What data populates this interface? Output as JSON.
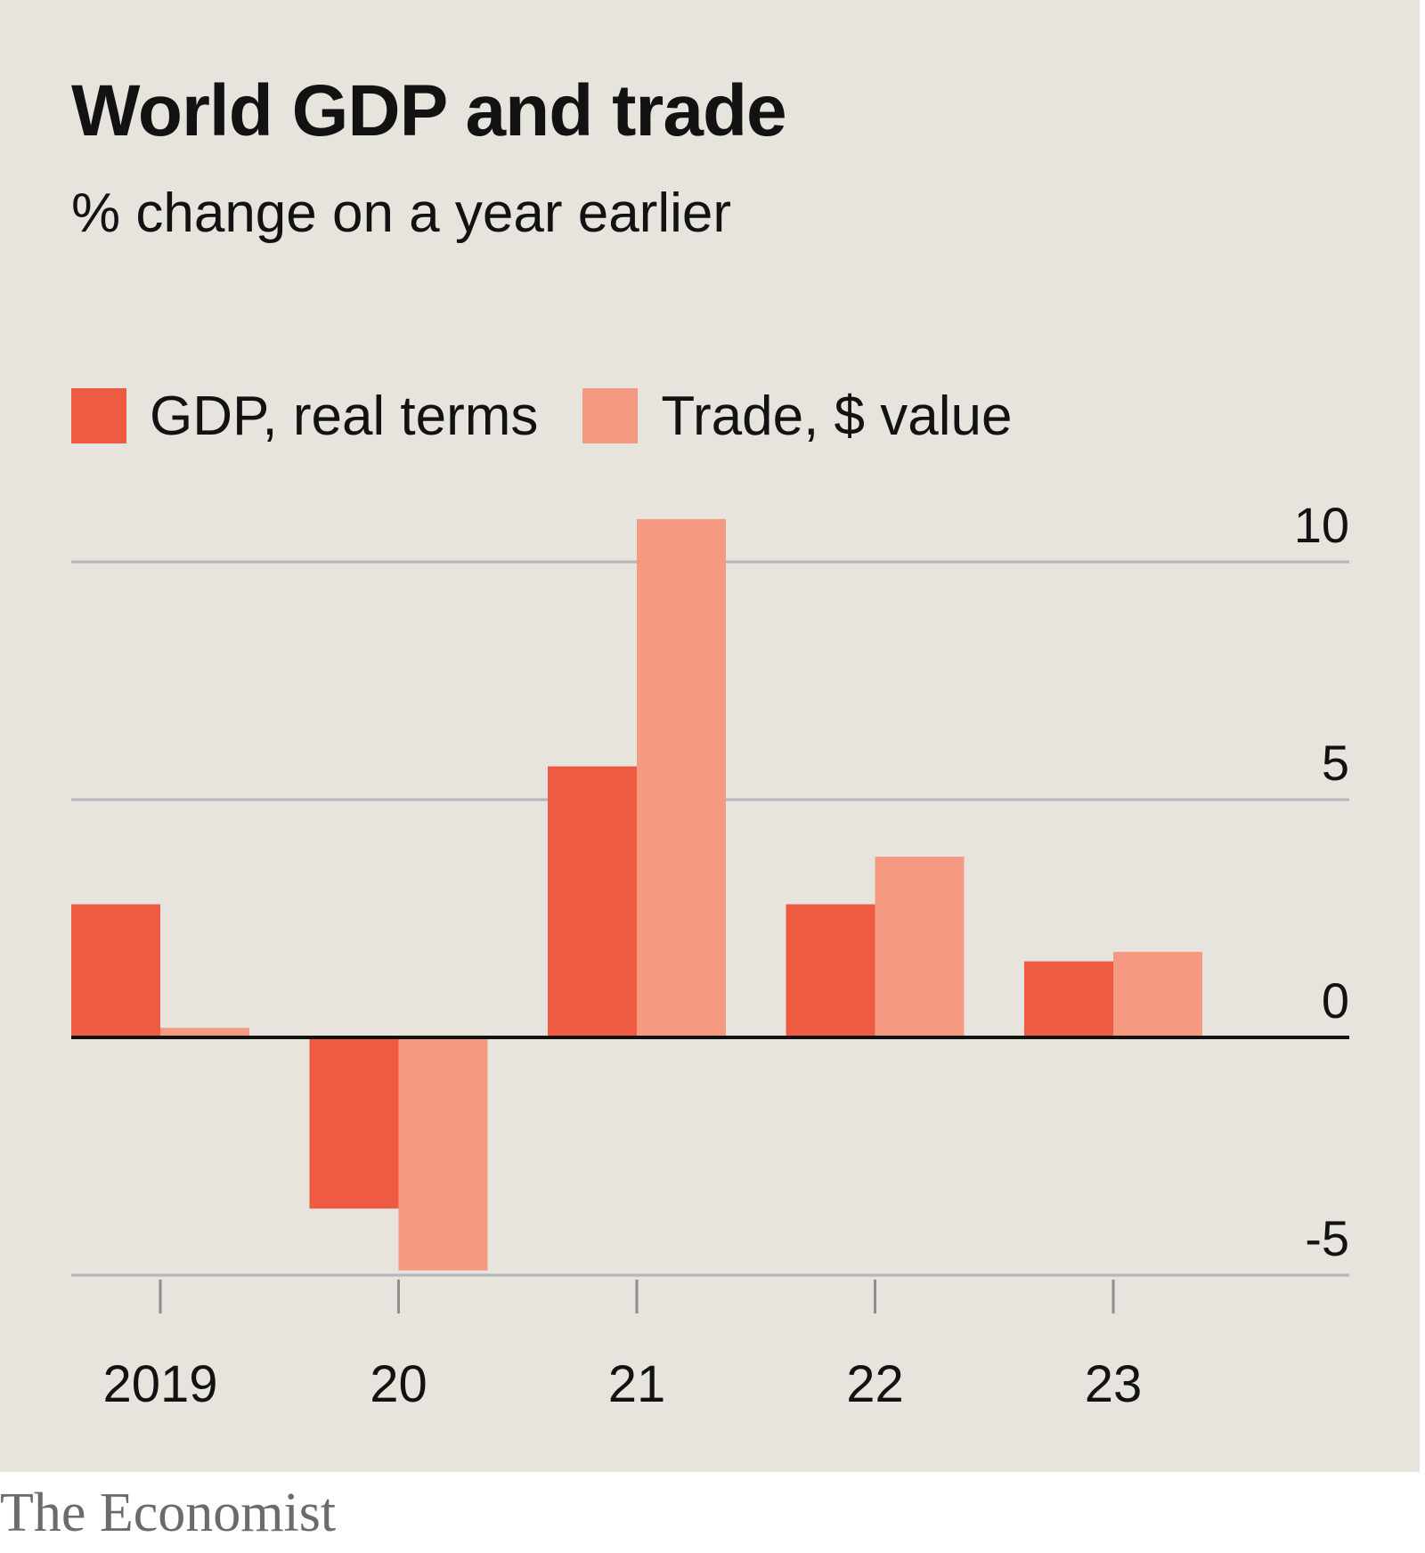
{
  "chart_data": {
    "type": "bar",
    "title": "World GDP and trade",
    "subtitle": "% change on a year earlier",
    "categories": [
      "2019",
      "20",
      "21",
      "22",
      "23"
    ],
    "series": [
      {
        "name": "GDP, real terms",
        "color": "#ef5a42",
        "values": [
          2.8,
          -3.6,
          5.7,
          2.8,
          1.6
        ]
      },
      {
        "name": "Trade, $ value",
        "color": "#f59a80",
        "values": [
          0.2,
          -4.9,
          10.9,
          3.8,
          1.8
        ]
      }
    ],
    "yticks": [
      10,
      5,
      0,
      -5
    ],
    "ytick_labels": [
      "10",
      "5",
      "0",
      "-5"
    ],
    "ylim": [
      -5,
      11
    ],
    "xlabel": "",
    "ylabel": "",
    "grid": true,
    "legend_position": "top-left"
  },
  "source": "The Economist"
}
